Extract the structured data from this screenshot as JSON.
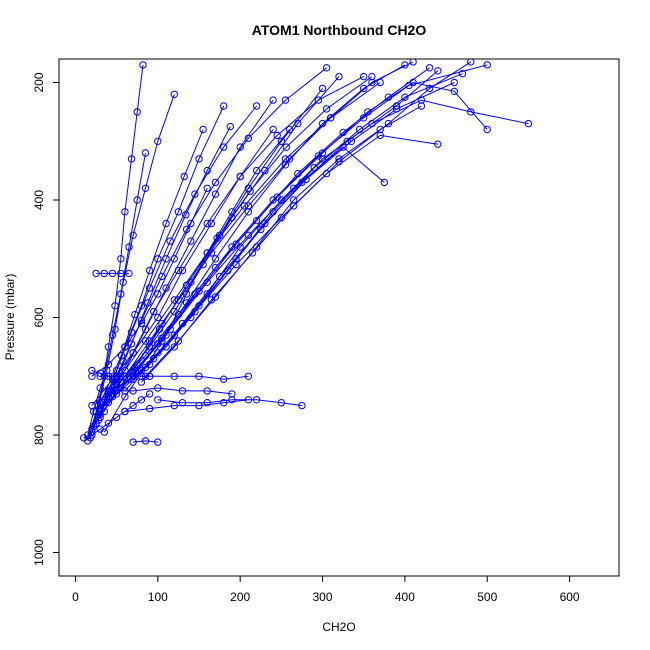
{
  "chart_data": {
    "type": "line",
    "title": "ATOM1 Northbound CH2O",
    "xlabel": "CH2O",
    "ylabel": "Pressure (mbar)",
    "xlim": [
      -20,
      660
    ],
    "ylim": [
      1040,
      160
    ],
    "y_reversed": true,
    "x_ticks": [
      "0",
      "100",
      "200",
      "300",
      "400",
      "500",
      "600"
    ],
    "y_ticks": [
      "200",
      "400",
      "600",
      "800",
      "1000"
    ],
    "grid": false,
    "legend": "none",
    "series_color": "#0000ff",
    "marker": "open-circle",
    "series": [
      {
        "x": [
          15,
          22,
          30,
          35,
          40,
          48,
          55,
          60,
          68,
          75,
          82
        ],
        "y": [
          800,
          760,
          720,
          700,
          650,
          580,
          500,
          420,
          330,
          250,
          170
        ]
      },
      {
        "x": [
          20,
          30,
          45,
          60,
          80,
          100,
          125,
          150,
          180
        ],
        "y": [
          790,
          745,
          700,
          650,
          580,
          500,
          420,
          330,
          240
        ]
      },
      {
        "x": [
          25,
          40,
          60,
          85,
          110,
          140,
          170,
          200,
          240
        ],
        "y": [
          780,
          730,
          690,
          620,
          550,
          470,
          390,
          310,
          230
        ]
      },
      {
        "x": [
          30,
          50,
          75,
          105,
          140,
          175,
          210,
          250,
          300
        ],
        "y": [
          770,
          725,
          680,
          610,
          540,
          460,
          380,
          300,
          210
        ]
      },
      {
        "x": [
          20,
          45,
          70,
          100,
          130,
          165,
          200,
          240
        ],
        "y": [
          750,
          705,
          660,
          600,
          520,
          440,
          360,
          280
        ]
      },
      {
        "x": [
          35,
          60,
          90,
          120,
          155,
          190,
          230,
          270,
          320
        ],
        "y": [
          740,
          700,
          650,
          590,
          510,
          430,
          350,
          270,
          190
        ]
      },
      {
        "x": [
          40,
          70,
          100,
          135,
          170,
          210,
          255,
          300,
          350,
          400
        ],
        "y": [
          735,
          700,
          645,
          575,
          500,
          420,
          340,
          270,
          210,
          170
        ]
      },
      {
        "x": [
          25,
          55,
          90,
          125,
          165,
          210,
          260,
          310,
          360,
          410
        ],
        "y": [
          760,
          710,
          640,
          570,
          490,
          410,
          330,
          260,
          200,
          165
        ]
      },
      {
        "x": [
          45,
          80,
          120,
          160,
          200,
          250,
          300,
          360,
          420,
          480,
          550
        ],
        "y": [
          725,
          690,
          630,
          560,
          480,
          400,
          330,
          270,
          230,
          250,
          270
        ]
      },
      {
        "x": [
          30,
          65,
          105,
          150,
          195,
          245,
          300,
          355,
          410,
          460,
          500
        ],
        "y": [
          765,
          705,
          635,
          555,
          475,
          395,
          320,
          250,
          200,
          215,
          280
        ]
      },
      {
        "x": [
          50,
          90,
          130,
          175,
          225,
          275,
          330,
          390,
          440
        ],
        "y": [
          730,
          680,
          610,
          530,
          450,
          370,
          300,
          240,
          180
        ]
      },
      {
        "x": [
          55,
          95,
          140,
          185,
          230,
          280,
          335,
          390,
          460
        ],
        "y": [
          720,
          670,
          600,
          520,
          440,
          365,
          300,
          245,
          200
        ]
      },
      {
        "x": [
          20,
          40,
          60,
          80,
          100,
          120,
          140,
          160
        ],
        "y": [
          700,
          680,
          650,
          610,
          560,
          500,
          440,
          380
        ]
      },
      {
        "x": [
          60,
          100,
          145,
          195,
          250,
          305,
          370,
          440
        ],
        "y": [
          725,
          660,
          590,
          510,
          430,
          355,
          290,
          305
        ]
      },
      {
        "x": [
          35,
          60,
          85,
          110,
          135,
          160,
          190,
          220,
          260
        ],
        "y": [
          795,
          735,
          685,
          630,
          560,
          490,
          420,
          350,
          280
        ]
      },
      {
        "x": [
          15,
          25,
          35,
          45,
          55,
          65,
          75,
          85
        ],
        "y": [
          810,
          760,
          700,
          630,
          560,
          480,
          400,
          320
        ]
      },
      {
        "x": [
          18,
          28,
          38,
          48,
          58,
          70,
          85,
          100,
          120
        ],
        "y": [
          805,
          750,
          690,
          620,
          540,
          460,
          380,
          300,
          220
        ]
      },
      {
        "x": [
          70,
          110,
          150,
          195,
          240,
          290,
          345,
          400,
          470
        ],
        "y": [
          705,
          650,
          580,
          500,
          420,
          345,
          280,
          225,
          185
        ]
      },
      {
        "x": [
          25,
          45,
          70,
          95,
          125,
          160,
          200,
          245,
          295,
          350
        ],
        "y": [
          780,
          720,
          660,
          590,
          520,
          440,
          360,
          290,
          230,
          190
        ]
      },
      {
        "x": [
          40,
          75,
          115,
          160,
          210,
          265,
          325,
          375
        ],
        "y": [
          745,
          690,
          620,
          540,
          460,
          380,
          310,
          370
        ]
      },
      {
        "x": [
          80,
          120,
          165,
          215,
          265,
          320,
          380,
          430,
          480
        ],
        "y": [
          710,
          650,
          570,
          490,
          410,
          335,
          270,
          210,
          165
        ]
      },
      {
        "x": [
          30,
          55,
          85,
          120,
          160,
          205,
          255,
          310,
          370
        ],
        "y": [
          755,
          700,
          640,
          570,
          490,
          410,
          330,
          260,
          200
        ]
      },
      {
        "x": [
          22,
          38,
          58,
          80,
          105,
          135,
          170,
          210,
          255,
          305
        ],
        "y": [
          785,
          735,
          675,
          605,
          530,
          450,
          370,
          295,
          230,
          175
        ]
      },
      {
        "x": [
          50,
          85,
          125,
          170,
          220,
          270,
          325,
          380,
          430
        ],
        "y": [
          715,
          665,
          595,
          515,
          435,
          355,
          285,
          225,
          175
        ]
      },
      {
        "x": [
          28,
          42,
          56,
          72,
          90,
          110,
          132,
          155
        ],
        "y": [
          775,
          725,
          665,
          595,
          520,
          440,
          360,
          280
        ]
      },
      {
        "x": [
          65,
          105,
          145,
          190,
          240,
          295,
          350,
          405,
          500
        ],
        "y": [
          700,
          640,
          560,
          480,
          400,
          325,
          260,
          205,
          170
        ]
      },
      {
        "x": [
          35,
          50,
          68,
          88,
          110,
          134,
          160,
          188
        ],
        "y": [
          760,
          705,
          645,
          575,
          500,
          425,
          350,
          275
        ]
      },
      {
        "x": [
          45,
          72,
          102,
          135,
          172,
          212,
          256,
          305,
          360
        ],
        "y": [
          735,
          685,
          620,
          545,
          465,
          385,
          310,
          245,
          190
        ]
      },
      {
        "x": [
          85,
          125,
          170,
          220,
          265,
          320,
          370,
          420
        ],
        "y": [
          700,
          640,
          565,
          480,
          400,
          330,
          280,
          240
        ]
      },
      {
        "x": [
          20,
          34,
          50,
          68,
          90,
          115,
          145,
          180,
          220
        ],
        "y": [
          795,
          745,
          690,
          625,
          550,
          470,
          390,
          310,
          240
        ]
      },
      {
        "x": [
          10,
          20,
          30,
          40,
          50,
          60,
          70,
          80,
          90
        ],
        "y": [
          805,
          800,
          790,
          780,
          770,
          760,
          750,
          740,
          730
        ]
      },
      {
        "x": [
          100,
          130,
          160,
          190,
          220,
          250,
          275
        ],
        "y": [
          740,
          745,
          745,
          740,
          740,
          745,
          750
        ]
      },
      {
        "x": [
          30,
          60,
          90,
          120,
          150,
          180,
          210
        ],
        "y": [
          700,
          700,
          700,
          700,
          700,
          705,
          700
        ]
      },
      {
        "x": [
          40,
          70,
          100,
          130,
          160,
          190
        ],
        "y": [
          725,
          725,
          720,
          725,
          725,
          730
        ]
      },
      {
        "x": [
          60,
          90,
          120,
          150,
          180,
          210
        ],
        "y": [
          760,
          755,
          750,
          750,
          745,
          740
        ]
      },
      {
        "x": [
          70,
          85,
          100
        ],
        "y": [
          812,
          810,
          812
        ]
      },
      {
        "x": [
          25,
          35,
          45,
          55,
          65
        ],
        "y": [
          525,
          525,
          525,
          525,
          525
        ]
      },
      {
        "x": [
          20,
          30,
          40,
          50,
          60,
          70,
          80,
          90
        ],
        "y": [
          690,
          695,
          700,
          700,
          700,
          700,
          700,
          700
        ]
      }
    ]
  }
}
